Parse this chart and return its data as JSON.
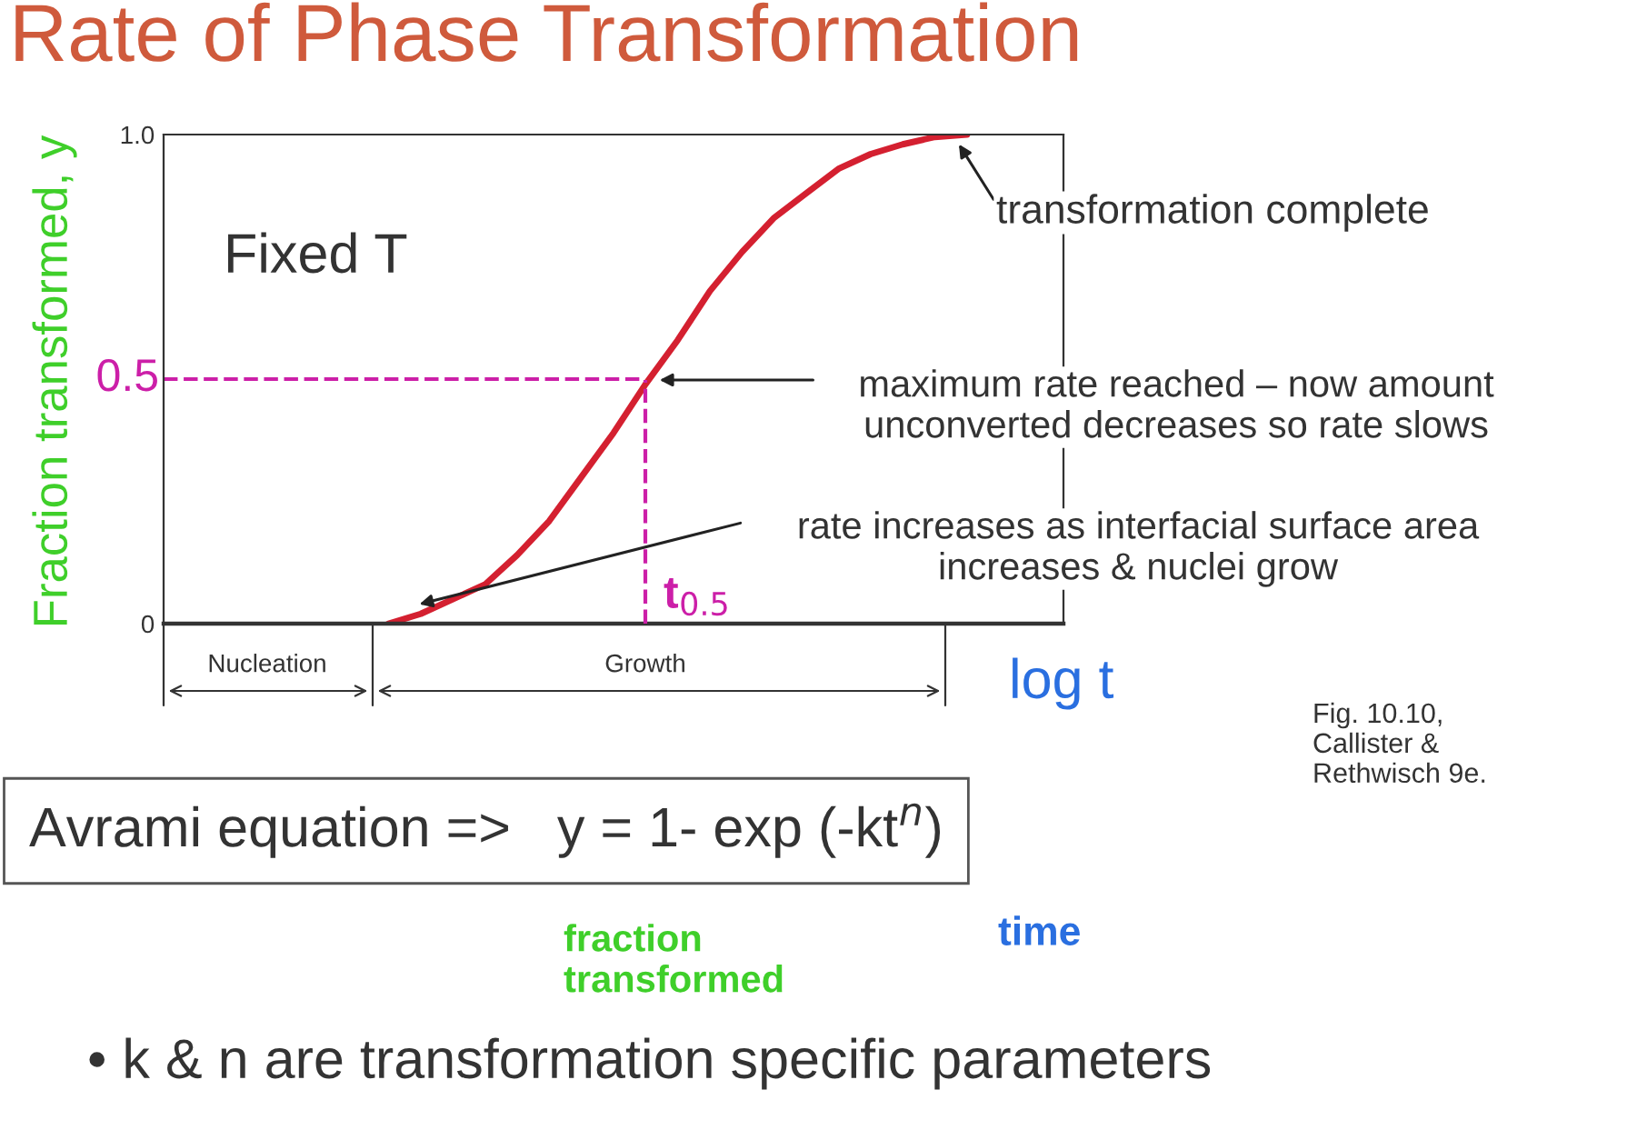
{
  "chart_data": {
    "type": "line",
    "title": "Rate of Phase Transformation",
    "xlabel": "log t",
    "ylabel": "Fraction transformed, y",
    "categories": [
      null,
      null,
      null,
      null,
      null,
      null,
      null,
      null,
      null,
      null,
      null,
      null,
      null,
      null,
      null,
      null,
      null,
      null,
      null,
      null,
      null,
      null,
      null,
      null,
      null,
      null,
      null,
      null,
      null
    ],
    "series": [
      {
        "color": "#d42030",
        "values": [
          null,
          null,
          null,
          null,
          null,
          null,
          null,
          0.0,
          0.02,
          0.05,
          0.08,
          0.14,
          0.21,
          0.3,
          0.39,
          0.49,
          0.58,
          0.68,
          0.76,
          0.83,
          0.88,
          0.93,
          0.96,
          0.98,
          0.995,
          1.0,
          null,
          null,
          null
        ]
      }
    ],
    "ylim": [
      0,
      1.0
    ],
    "yticks": [
      0,
      {
        "value": 1.0,
        "label": "1.0"
      }
    ],
    "ref_lines": [
      {
        "axis": "y",
        "value": 0.5,
        "label": "0.5",
        "color": "#cc1fa8",
        "line_style": "dashed"
      }
    ],
    "grid": false,
    "marker": "none",
    "line_style": "solid",
    "annotations": [
      "Fixed T",
      "transformation complete",
      "maximum rate reached – now amount\nunconverted decreases so rate slows",
      "rate increases as interfacial surface area\nincreases & nuclei grow",
      "Nucleation",
      "Growth",
      "Avrami equation =>   y = 1- exp (-kt$^{n}$)",
      "fraction\ntransformed",
      "time",
      "• k & n are transformation specific parameters",
      "Fig. 10.10,\nCallister &\nRethwisch 9e.",
      "t$_{0.5}$"
    ]
  }
}
